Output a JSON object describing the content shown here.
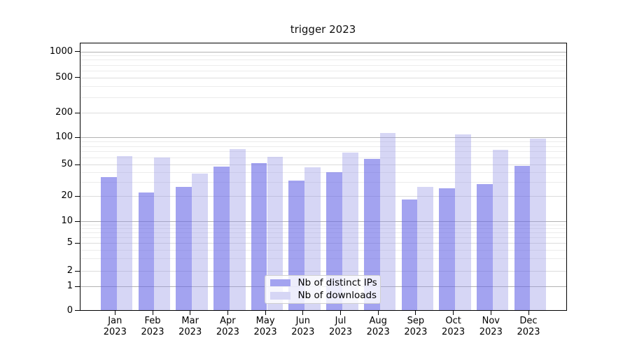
{
  "chart_data": {
    "type": "bar",
    "title": "trigger 2023",
    "categories": [
      "Jan 2023",
      "Feb 2023",
      "Mar 2023",
      "Apr 2023",
      "May 2023",
      "Jun 2023",
      "Jul 2023",
      "Aug 2023",
      "Sep 2023",
      "Oct 2023",
      "Nov 2023",
      "Dec 2023"
    ],
    "series": [
      {
        "name": "Nb of distinct IPs",
        "color": "rgba(102,102,230,0.6)",
        "solid_color": "#a3a3f0",
        "values": [
          35,
          22,
          26,
          47,
          52,
          31,
          40,
          58,
          18,
          25,
          28,
          48
        ]
      },
      {
        "name": "Nb of downloads",
        "color": "rgba(153,153,230,0.4)",
        "solid_color": "#d6d6f5",
        "values": [
          62,
          60,
          38,
          74,
          61,
          46,
          68,
          112,
          26,
          108,
          72,
          96
        ]
      }
    ],
    "xlabel": "",
    "ylabel": "",
    "yscale": "symlog",
    "ylim": [
      0,
      1300
    ],
    "yticks": [
      1000,
      500,
      200,
      100,
      50,
      20,
      10,
      5,
      2,
      1,
      0
    ],
    "grid": "both",
    "legend_position": "lower center"
  },
  "colors": {
    "major_grid": "#b2b2b2",
    "labeled_grid": "#dcdcdc",
    "minor_grid": "#ececec",
    "spine": "#000000",
    "text": "#000000",
    "background": "#ffffff"
  }
}
